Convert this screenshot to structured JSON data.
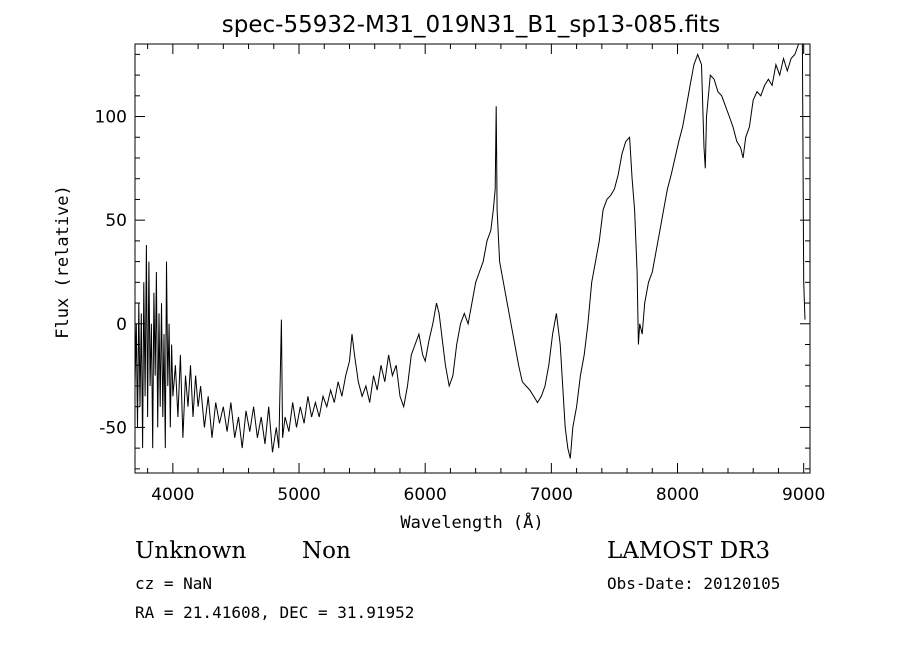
{
  "chart_data": {
    "type": "line",
    "title": "spec-55932-M31_019N31_B1_sp13-085.fits",
    "xlabel": "Wavelength (Å)",
    "ylabel": "Flux (relative)",
    "xlim": [
      3700,
      9050
    ],
    "ylim": [
      -72,
      135
    ],
    "x_ticks": [
      4000,
      5000,
      6000,
      7000,
      8000,
      9000
    ],
    "y_ticks": [
      -50,
      0,
      50,
      100
    ],
    "grid": false,
    "series": [
      {
        "color": "#000000",
        "points": [
          [
            3700,
            -30
          ],
          [
            3710,
            0
          ],
          [
            3720,
            -50
          ],
          [
            3730,
            10
          ],
          [
            3740,
            -40
          ],
          [
            3750,
            5
          ],
          [
            3760,
            -60
          ],
          [
            3770,
            20
          ],
          [
            3780,
            -35
          ],
          [
            3790,
            38
          ],
          [
            3800,
            -45
          ],
          [
            3810,
            30
          ],
          [
            3820,
            -30
          ],
          [
            3830,
            0
          ],
          [
            3840,
            -60
          ],
          [
            3850,
            15
          ],
          [
            3860,
            -25
          ],
          [
            3870,
            25
          ],
          [
            3880,
            -50
          ],
          [
            3890,
            5
          ],
          [
            3900,
            -40
          ],
          [
            3910,
            10
          ],
          [
            3920,
            -45
          ],
          [
            3930,
            -5
          ],
          [
            3940,
            -60
          ],
          [
            3950,
            30
          ],
          [
            3960,
            -30
          ],
          [
            3970,
            0
          ],
          [
            3980,
            -50
          ],
          [
            3990,
            -10
          ],
          [
            4000,
            -35
          ],
          [
            4020,
            -20
          ],
          [
            4040,
            -45
          ],
          [
            4060,
            -15
          ],
          [
            4080,
            -55
          ],
          [
            4100,
            -25
          ],
          [
            4120,
            -40
          ],
          [
            4140,
            -20
          ],
          [
            4160,
            -45
          ],
          [
            4180,
            -25
          ],
          [
            4200,
            -40
          ],
          [
            4220,
            -30
          ],
          [
            4250,
            -50
          ],
          [
            4280,
            -35
          ],
          [
            4310,
            -55
          ],
          [
            4340,
            -38
          ],
          [
            4370,
            -48
          ],
          [
            4400,
            -40
          ],
          [
            4430,
            -52
          ],
          [
            4460,
            -38
          ],
          [
            4490,
            -55
          ],
          [
            4520,
            -45
          ],
          [
            4550,
            -60
          ],
          [
            4580,
            -42
          ],
          [
            4610,
            -52
          ],
          [
            4640,
            -40
          ],
          [
            4670,
            -55
          ],
          [
            4700,
            -45
          ],
          [
            4730,
            -58
          ],
          [
            4760,
            -40
          ],
          [
            4790,
            -62
          ],
          [
            4820,
            -50
          ],
          [
            4840,
            -60
          ],
          [
            4860,
            2
          ],
          [
            4870,
            -55
          ],
          [
            4890,
            -45
          ],
          [
            4920,
            -52
          ],
          [
            4950,
            -38
          ],
          [
            4980,
            -50
          ],
          [
            5010,
            -40
          ],
          [
            5040,
            -48
          ],
          [
            5070,
            -35
          ],
          [
            5100,
            -45
          ],
          [
            5130,
            -38
          ],
          [
            5160,
            -45
          ],
          [
            5190,
            -35
          ],
          [
            5220,
            -40
          ],
          [
            5250,
            -32
          ],
          [
            5280,
            -38
          ],
          [
            5310,
            -28
          ],
          [
            5340,
            -35
          ],
          [
            5370,
            -25
          ],
          [
            5400,
            -18
          ],
          [
            5420,
            -5
          ],
          [
            5440,
            -15
          ],
          [
            5470,
            -28
          ],
          [
            5500,
            -35
          ],
          [
            5530,
            -30
          ],
          [
            5560,
            -38
          ],
          [
            5590,
            -25
          ],
          [
            5620,
            -32
          ],
          [
            5650,
            -20
          ],
          [
            5680,
            -28
          ],
          [
            5710,
            -15
          ],
          [
            5740,
            -25
          ],
          [
            5770,
            -20
          ],
          [
            5800,
            -35
          ],
          [
            5830,
            -40
          ],
          [
            5860,
            -30
          ],
          [
            5890,
            -15
          ],
          [
            5920,
            -10
          ],
          [
            5950,
            -5
          ],
          [
            5980,
            -15
          ],
          [
            6000,
            -18
          ],
          [
            6030,
            -8
          ],
          [
            6060,
            0
          ],
          [
            6090,
            10
          ],
          [
            6110,
            5
          ],
          [
            6130,
            -5
          ],
          [
            6160,
            -20
          ],
          [
            6190,
            -30
          ],
          [
            6220,
            -25
          ],
          [
            6250,
            -10
          ],
          [
            6280,
            0
          ],
          [
            6310,
            5
          ],
          [
            6340,
            0
          ],
          [
            6370,
            10
          ],
          [
            6400,
            20
          ],
          [
            6430,
            25
          ],
          [
            6460,
            30
          ],
          [
            6490,
            40
          ],
          [
            6520,
            45
          ],
          [
            6540,
            55
          ],
          [
            6555,
            65
          ],
          [
            6563,
            105
          ],
          [
            6570,
            55
          ],
          [
            6590,
            30
          ],
          [
            6620,
            20
          ],
          [
            6650,
            10
          ],
          [
            6680,
            0
          ],
          [
            6710,
            -10
          ],
          [
            6740,
            -20
          ],
          [
            6770,
            -28
          ],
          [
            6800,
            -30
          ],
          [
            6830,
            -32
          ],
          [
            6860,
            -35
          ],
          [
            6890,
            -38
          ],
          [
            6920,
            -35
          ],
          [
            6950,
            -30
          ],
          [
            6980,
            -20
          ],
          [
            7010,
            -5
          ],
          [
            7040,
            5
          ],
          [
            7070,
            -10
          ],
          [
            7090,
            -30
          ],
          [
            7110,
            -50
          ],
          [
            7130,
            -60
          ],
          [
            7150,
            -65
          ],
          [
            7170,
            -50
          ],
          [
            7200,
            -40
          ],
          [
            7230,
            -25
          ],
          [
            7260,
            -15
          ],
          [
            7290,
            0
          ],
          [
            7320,
            20
          ],
          [
            7350,
            30
          ],
          [
            7380,
            40
          ],
          [
            7410,
            55
          ],
          [
            7440,
            60
          ],
          [
            7470,
            62
          ],
          [
            7500,
            65
          ],
          [
            7530,
            72
          ],
          [
            7560,
            82
          ],
          [
            7590,
            88
          ],
          [
            7620,
            90
          ],
          [
            7640,
            70
          ],
          [
            7660,
            55
          ],
          [
            7680,
            25
          ],
          [
            7690,
            -10
          ],
          [
            7700,
            0
          ],
          [
            7720,
            -5
          ],
          [
            7740,
            10
          ],
          [
            7770,
            20
          ],
          [
            7800,
            25
          ],
          [
            7830,
            35
          ],
          [
            7860,
            45
          ],
          [
            7890,
            55
          ],
          [
            7920,
            65
          ],
          [
            7950,
            72
          ],
          [
            7980,
            80
          ],
          [
            8010,
            88
          ],
          [
            8040,
            95
          ],
          [
            8070,
            105
          ],
          [
            8100,
            115
          ],
          [
            8130,
            125
          ],
          [
            8160,
            130
          ],
          [
            8190,
            125
          ],
          [
            8210,
            85
          ],
          [
            8220,
            75
          ],
          [
            8230,
            100
          ],
          [
            8260,
            120
          ],
          [
            8290,
            118
          ],
          [
            8320,
            112
          ],
          [
            8350,
            110
          ],
          [
            8380,
            105
          ],
          [
            8410,
            100
          ],
          [
            8440,
            95
          ],
          [
            8470,
            88
          ],
          [
            8500,
            85
          ],
          [
            8520,
            80
          ],
          [
            8540,
            90
          ],
          [
            8570,
            95
          ],
          [
            8600,
            108
          ],
          [
            8630,
            112
          ],
          [
            8660,
            110
          ],
          [
            8690,
            115
          ],
          [
            8720,
            118
          ],
          [
            8750,
            115
          ],
          [
            8780,
            125
          ],
          [
            8810,
            120
          ],
          [
            8840,
            128
          ],
          [
            8870,
            122
          ],
          [
            8900,
            128
          ],
          [
            8930,
            130
          ],
          [
            8960,
            135
          ],
          [
            8990,
            135
          ],
          [
            9000,
            20
          ],
          [
            9010,
            2
          ]
        ]
      }
    ]
  },
  "info": {
    "object_class": "Unknown",
    "object_subclass": "Non",
    "cz": "cz = NaN",
    "coords": "RA =  21.41608, DEC =  31.91952",
    "survey": "LAMOST DR3",
    "obs_date": "Obs-Date: 20120105"
  }
}
